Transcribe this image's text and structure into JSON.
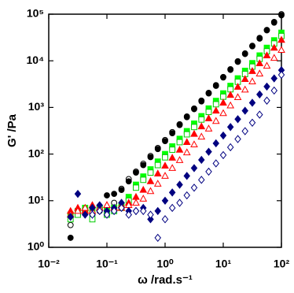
{
  "chart_data": {
    "type": "scatter",
    "xlabel": "ω /rad.s⁻¹",
    "ylabel": "G' /Pa",
    "log_x": true,
    "log_y": true,
    "xlim": [
      0.01,
      100
    ],
    "ylim": [
      1,
      100000
    ],
    "xticks": [
      {
        "value": 0.01,
        "label": "10⁻²"
      },
      {
        "value": 0.1,
        "label": "10⁻¹"
      },
      {
        "value": 1,
        "label": "10⁰"
      },
      {
        "value": 10,
        "label": "10¹"
      },
      {
        "value": 100,
        "label": "10²"
      }
    ],
    "yticks": [
      {
        "value": 1,
        "label": "10⁰"
      },
      {
        "value": 10,
        "label": "10¹"
      },
      {
        "value": 100,
        "label": "10²"
      },
      {
        "value": 1000,
        "label": "10³"
      },
      {
        "value": 10000,
        "label": "10⁴"
      },
      {
        "value": 100000,
        "label": "10⁵"
      }
    ],
    "x": [
      0.0237,
      0.0316,
      0.0422,
      0.0562,
      0.075,
      0.1,
      0.133,
      0.178,
      0.237,
      0.316,
      0.422,
      0.562,
      0.75,
      1,
      1.33,
      1.78,
      2.37,
      3.16,
      4.22,
      5.62,
      7.5,
      10,
      13.3,
      17.8,
      23.7,
      31.6,
      42.2,
      56.2,
      75,
      100
    ],
    "series": [
      {
        "color": "#000000",
        "marker": "circle",
        "filled": false,
        "values": [
          3,
          5,
          6,
          7,
          6,
          7,
          9,
          18,
          29,
          42,
          62,
          91,
          135,
          200,
          295,
          435,
          640,
          950,
          1400,
          2050,
          3000,
          4500,
          6600,
          9800,
          14400,
          21000,
          31000,
          46000,
          68000,
          100000
        ]
      },
      {
        "color": "#000000",
        "marker": "circle",
        "filled": true,
        "values": [
          1.6,
          5,
          6,
          5,
          7,
          13,
          14,
          17,
          26,
          40,
          58,
          86,
          128,
          190,
          280,
          420,
          620,
          920,
          1350,
          2000,
          2900,
          4400,
          6400,
          9500,
          14000,
          20500,
          30000,
          45000,
          66000,
          95000
        ]
      },
      {
        "color": "#00ff00",
        "marker": "square",
        "filled": true,
        "values": [
          5,
          6,
          7,
          6,
          7,
          6,
          7,
          8,
          12,
          22,
          33,
          47,
          69,
          100,
          146,
          212,
          310,
          450,
          650,
          950,
          1380,
          2000,
          2900,
          4200,
          6100,
          8900,
          13000,
          19000,
          27500,
          40000
        ]
      },
      {
        "color": "#00cc00",
        "marker": "square",
        "filled": false,
        "values": [
          4,
          5,
          6,
          4,
          7,
          5,
          6,
          7,
          10,
          19,
          28,
          40,
          58,
          85,
          124,
          180,
          265,
          380,
          550,
          800,
          1170,
          1700,
          2450,
          3550,
          5200,
          7500,
          11000,
          16000,
          23500,
          34000
        ]
      },
      {
        "color": "#ff0000",
        "marker": "triangle",
        "filled": true,
        "values": [
          6,
          7,
          6,
          8,
          7,
          8,
          7,
          8,
          9,
          12,
          17,
          26,
          38,
          56,
          83,
          123,
          180,
          270,
          390,
          580,
          850,
          1260,
          1850,
          2750,
          4050,
          6000,
          8800,
          13000,
          19000,
          28000
        ]
      },
      {
        "color": "#ff0000",
        "marker": "triangle",
        "filled": false,
        "values": [
          5,
          6,
          7,
          6,
          7,
          8,
          7,
          7,
          8,
          9,
          11,
          16,
          23,
          34,
          50,
          74,
          108,
          160,
          235,
          350,
          510,
          750,
          1100,
          1650,
          2400,
          3600,
          5300,
          7800,
          11500,
          17000
        ]
      },
      {
        "color": "#000080",
        "marker": "diamond",
        "filled": true,
        "values": [
          4.5,
          14,
          5,
          7,
          8,
          6,
          7,
          9,
          6,
          6,
          7,
          4,
          6,
          10,
          15,
          22,
          34,
          50,
          75,
          112,
          170,
          250,
          380,
          560,
          850,
          1260,
          1900,
          2800,
          4200,
          6300
        ]
      },
      {
        "color": "#000080",
        "marker": "diamond",
        "filled": false,
        "values": [
          null,
          null,
          null,
          5,
          6,
          5,
          6,
          7,
          5,
          6,
          6,
          5,
          1.6,
          4,
          7,
          9,
          13,
          19,
          28,
          42,
          63,
          95,
          140,
          210,
          310,
          470,
          700,
          1400,
          2300,
          5000
        ]
      }
    ]
  }
}
